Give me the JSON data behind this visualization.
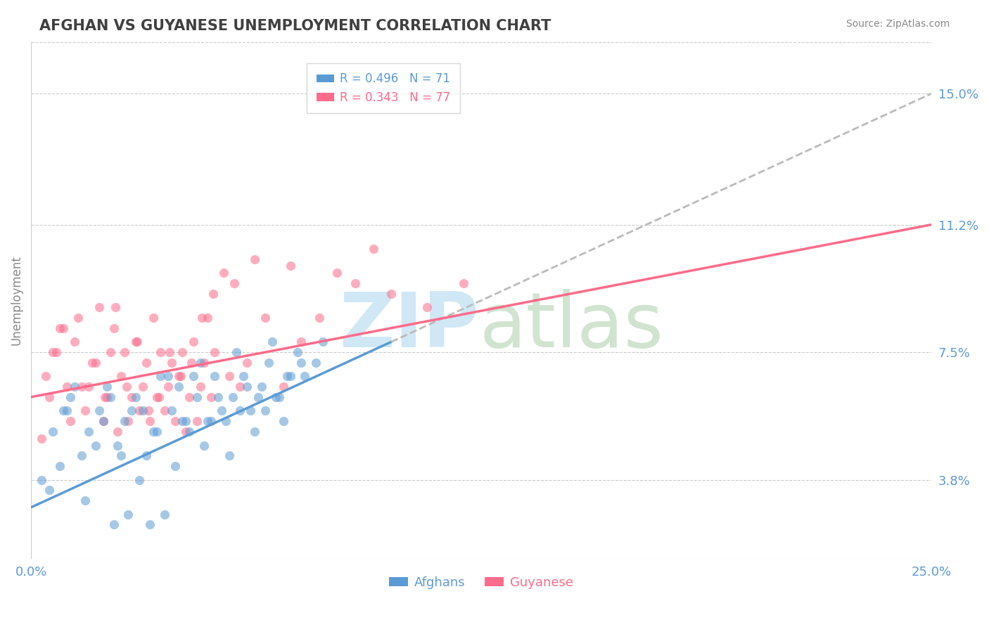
{
  "title": "AFGHAN VS GUYANESE UNEMPLOYMENT CORRELATION CHART",
  "source": "Source: ZipAtlas.com",
  "ylabel_ticks": [
    3.8,
    7.5,
    11.2,
    15.0
  ],
  "xlim": [
    0.0,
    25.0
  ],
  "ylim": [
    1.5,
    16.5
  ],
  "afghan_R": 0.496,
  "afghan_N": 71,
  "guyanese_R": 0.343,
  "guyanese_N": 77,
  "afghan_color": "#5B9BD5",
  "guyanese_color": "#FF6B8A",
  "legend_label_afghan": "Afghans",
  "legend_label_guyanese": "Guyanese",
  "background_color": "#FFFFFF",
  "grid_color": "#CCCCCC",
  "title_color": "#404040",
  "axis_label_color": "#5B9BD5",
  "watermark_color": "#D0E8F5",
  "watermark_color2": "#C8E0C8",
  "afghan_line_x0": 0.0,
  "afghan_line_y0": 3.0,
  "afghan_line_x1": 25.0,
  "afghan_line_y1": 15.0,
  "afghan_solid_x1": 10.0,
  "guyanese_line_x0": 0.0,
  "guyanese_line_y0": 6.2,
  "guyanese_line_x1": 25.0,
  "guyanese_line_y1": 11.2,
  "afghan_scatter_x": [
    0.5,
    0.8,
    1.0,
    1.2,
    1.5,
    1.8,
    2.0,
    2.2,
    2.5,
    2.8,
    3.0,
    3.2,
    3.5,
    3.8,
    4.0,
    4.2,
    4.5,
    4.8,
    5.0,
    5.2,
    5.5,
    5.8,
    6.0,
    6.2,
    6.5,
    6.8,
    7.0,
    7.2,
    7.5,
    0.3,
    0.6,
    0.9,
    1.1,
    1.4,
    1.6,
    1.9,
    2.1,
    2.4,
    2.6,
    2.9,
    3.1,
    3.4,
    3.6,
    3.9,
    4.1,
    4.4,
    4.6,
    4.9,
    5.1,
    5.4,
    5.6,
    5.9,
    6.1,
    6.4,
    6.6,
    6.9,
    7.1,
    7.4,
    7.6,
    7.9,
    8.1,
    2.3,
    2.7,
    3.3,
    3.7,
    4.3,
    4.7,
    5.3,
    5.7,
    6.3,
    6.7
  ],
  "afghan_scatter_y": [
    3.5,
    4.2,
    5.8,
    6.5,
    3.2,
    4.8,
    5.5,
    6.2,
    4.5,
    5.8,
    3.8,
    4.5,
    5.2,
    6.8,
    4.2,
    5.5,
    6.8,
    4.8,
    5.5,
    6.2,
    4.5,
    5.8,
    6.5,
    5.2,
    5.8,
    6.2,
    5.5,
    6.8,
    7.2,
    3.8,
    5.2,
    5.8,
    6.2,
    4.5,
    5.2,
    5.8,
    6.5,
    4.8,
    5.5,
    6.2,
    5.8,
    5.2,
    6.8,
    5.8,
    6.5,
    5.2,
    6.2,
    5.5,
    6.8,
    5.5,
    6.2,
    6.8,
    5.8,
    6.5,
    7.2,
    6.2,
    6.8,
    7.5,
    6.8,
    7.2,
    7.8,
    2.5,
    2.8,
    2.5,
    2.8,
    5.5,
    7.2,
    5.8,
    7.5,
    6.2,
    7.8
  ],
  "guyanese_scatter_x": [
    0.3,
    0.5,
    0.7,
    0.9,
    1.0,
    1.2,
    1.3,
    1.5,
    1.6,
    1.8,
    1.9,
    2.0,
    2.1,
    2.2,
    2.3,
    2.4,
    2.5,
    2.6,
    2.7,
    2.8,
    2.9,
    3.0,
    3.1,
    3.2,
    3.3,
    3.4,
    3.5,
    3.6,
    3.7,
    3.8,
    3.9,
    4.0,
    4.1,
    4.2,
    4.3,
    4.4,
    4.5,
    4.6,
    4.7,
    4.8,
    4.9,
    5.0,
    5.1,
    5.5,
    5.8,
    6.0,
    6.5,
    7.0,
    7.5,
    8.0,
    9.0,
    10.0,
    11.0,
    12.0,
    0.4,
    0.6,
    0.8,
    1.1,
    1.4,
    1.7,
    2.05,
    2.35,
    2.65,
    2.95,
    3.25,
    3.55,
    3.85,
    4.15,
    4.45,
    4.75,
    5.05,
    5.35,
    5.65,
    6.2,
    7.2,
    8.5,
    9.5
  ],
  "guyanese_scatter_y": [
    5.0,
    6.2,
    7.5,
    8.2,
    6.5,
    7.8,
    8.5,
    5.8,
    6.5,
    7.2,
    8.8,
    5.5,
    6.2,
    7.5,
    8.2,
    5.2,
    6.8,
    7.5,
    5.5,
    6.2,
    7.8,
    5.8,
    6.5,
    7.2,
    5.5,
    8.5,
    6.2,
    7.5,
    5.8,
    6.5,
    7.2,
    5.5,
    6.8,
    7.5,
    5.2,
    6.2,
    7.8,
    5.5,
    6.5,
    7.2,
    8.5,
    6.2,
    7.5,
    6.8,
    6.5,
    7.2,
    8.5,
    6.5,
    7.8,
    8.5,
    9.5,
    9.2,
    8.8,
    9.5,
    6.8,
    7.5,
    8.2,
    5.5,
    6.5,
    7.2,
    6.2,
    8.8,
    6.5,
    7.8,
    5.8,
    6.2,
    7.5,
    6.8,
    7.2,
    8.5,
    9.2,
    9.8,
    9.5,
    10.2,
    10.0,
    9.8,
    10.5
  ]
}
